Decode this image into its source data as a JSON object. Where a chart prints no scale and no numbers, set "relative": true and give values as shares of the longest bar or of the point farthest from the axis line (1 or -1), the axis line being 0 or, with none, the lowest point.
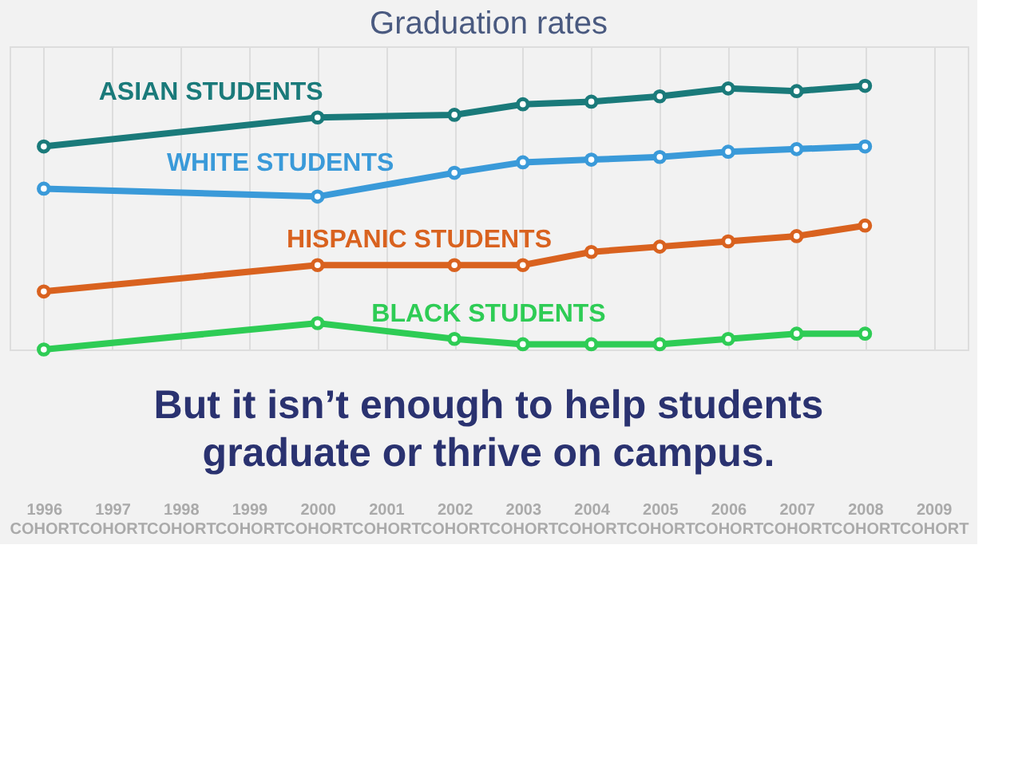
{
  "chart_data": {
    "type": "line",
    "title": "Graduation rates",
    "relative": true,
    "grid": "x",
    "marker": "circle",
    "categories": [
      "1996\nCOHORT",
      "1997\nCOHORT",
      "1998\nCOHORT",
      "1999\nCOHORT",
      "2000\nCOHORT",
      "2001\nCOHORT",
      "2002\nCOHORT",
      "2003\nCOHORT",
      "2004\nCOHORT",
      "2005\nCOHORT",
      "2006\nCOHORT",
      "2007\nCOHORT",
      "2008\nCOHORT",
      "2009\nCOHORT"
    ],
    "series": [
      {
        "name": "ASIAN STUDENTS",
        "color": "#1a7a7a",
        "values": [
          0.77,
          null,
          null,
          null,
          0.88,
          null,
          0.89,
          0.93,
          0.94,
          0.96,
          0.99,
          0.98,
          1,
          null
        ]
      },
      {
        "name": "WHITE STUDENTS",
        "color": "#3a9ad9",
        "values": [
          0.61,
          null,
          null,
          null,
          0.58,
          null,
          0.67,
          0.71,
          0.72,
          0.73,
          0.75,
          0.76,
          0.77,
          null
        ]
      },
      {
        "name": "HISPANIC STUDENTS",
        "color": "#d9621f",
        "values": [
          0.22,
          null,
          null,
          null,
          0.32,
          null,
          0.32,
          0.32,
          0.37,
          0.39,
          0.41,
          0.43,
          0.47,
          null
        ]
      },
      {
        "name": "BLACK STUDENTS",
        "color": "#2ecc55",
        "values": [
          0,
          null,
          null,
          null,
          0.1,
          null,
          0.04,
          0.02,
          0.02,
          0.02,
          0.04,
          0.06,
          0.06,
          null
        ]
      }
    ],
    "annotations": [
      "But it isn’t enough to help students\ngraduate or thrive on campus."
    ]
  }
}
